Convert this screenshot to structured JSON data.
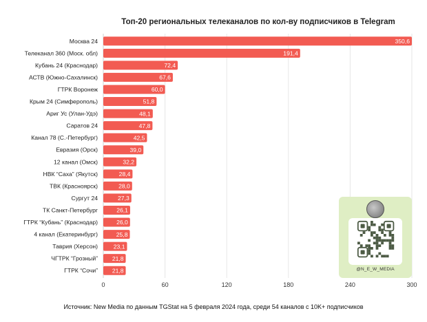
{
  "chart_data": {
    "type": "bar",
    "orientation": "horizontal",
    "title": "Топ-20 региональных телеканалов по кол-ву подписчиков в Telegram",
    "categories": [
      "Москва 24",
      "Телеканал 360 (Моск. обл)",
      "Кубань 24 (Краснодар)",
      "АСТВ (Южно-Сахалинск)",
      "ГТРК Воронеж",
      "Крым 24 (Симферополь)",
      "Ариг Ус (Улан-Удэ)",
      "Саратов 24",
      "Канал 78 (С.-Петербург)",
      "Евразия (Орск)",
      "12 канал (Омск)",
      "НВК “Саха” (Якутск)",
      "ТВК (Красноярск)",
      "Сургут 24",
      "ТК Санкт-Петербург",
      "ГТРК “Кубань” (Краснодар)",
      "4 канал (Екатеринбург)",
      "Таврия (Херсон)",
      "ЧГТРК “Грозный”",
      "ГТРК “Сочи”"
    ],
    "values": [
      350.6,
      191.4,
      72.4,
      67.6,
      60.0,
      51.8,
      48.1,
      47.8,
      42.5,
      39.0,
      32.2,
      28.4,
      28.0,
      27.3,
      26.1,
      26.0,
      25.8,
      23.1,
      21.8,
      21.8
    ],
    "value_labels": [
      "350,6",
      "191,4",
      "72,4",
      "67,6",
      "60,0",
      "51,8",
      "48,1",
      "47,8",
      "42,5",
      "39,0",
      "32,2",
      "28,4",
      "28,0",
      "27,3",
      "26,1",
      "26,0",
      "25,8",
      "23,1",
      "21,8",
      "21,8"
    ],
    "xlim": [
      0,
      300
    ],
    "xticks": [
      0,
      60,
      120,
      180,
      240,
      300
    ],
    "xlabel": "",
    "ylabel": "",
    "grid": "vertical",
    "legend": "none",
    "bar_color": "#f25b52"
  },
  "source_text": "Источник: New Media по данным TGStat на 5 февраля 2024 года, среди 54 каналов с 10K+ подписчиков",
  "qr_card": {
    "handle": "@N_E_W_MEDIA",
    "background": "#dfeec4",
    "icon": "qr-code-icon"
  }
}
